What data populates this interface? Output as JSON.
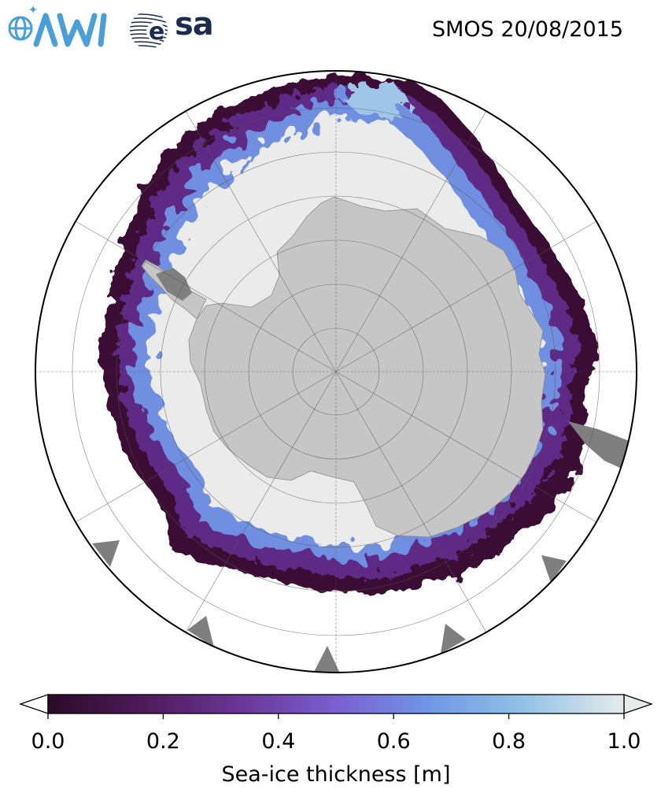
{
  "header": {
    "title": "SMOS 20/08/2015",
    "logos": [
      {
        "name": "awi-logo",
        "text": "AWI",
        "color": "#4a9fd6"
      },
      {
        "name": "esa-logo",
        "text": "esa",
        "color": "#1b2c4e"
      }
    ]
  },
  "map": {
    "projection": "south-polar-stereographic",
    "gridlines": true,
    "colors": {
      "land": "#c6c6c6",
      "ice_shelf": "#7f7f7f",
      "ocean": "#ffffff",
      "thick_ice": "#ebebeb"
    }
  },
  "colorbar": {
    "label": "Sea-ice thickness [m]",
    "min": 0.0,
    "max": 1.0,
    "ticks": [
      "0.0",
      "0.2",
      "0.4",
      "0.6",
      "0.8",
      "1.0"
    ],
    "extend": "both",
    "stops": [
      "#2b0a27",
      "#4d1a57",
      "#6a3596",
      "#7a5fd0",
      "#6f96e6",
      "#93c3e6",
      "#e6ebeb"
    ]
  }
}
